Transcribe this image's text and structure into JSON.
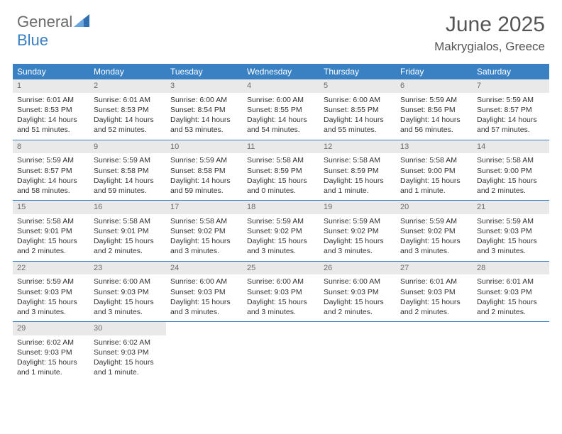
{
  "brand": {
    "text1": "General",
    "text2": "Blue"
  },
  "title": {
    "month_year": "June 2025",
    "location": "Makrygialos, Greece"
  },
  "colors": {
    "header_bar": "#3a81c4",
    "day_number_bg": "#e9e9e9",
    "text": "#333333",
    "muted": "#6b6b6b",
    "rule": "#3a81c4"
  },
  "weekdays": [
    "Sunday",
    "Monday",
    "Tuesday",
    "Wednesday",
    "Thursday",
    "Friday",
    "Saturday"
  ],
  "weeks": [
    [
      {
        "n": "1",
        "sunrise": "Sunrise: 6:01 AM",
        "sunset": "Sunset: 8:53 PM",
        "daylight": "Daylight: 14 hours and 51 minutes."
      },
      {
        "n": "2",
        "sunrise": "Sunrise: 6:01 AM",
        "sunset": "Sunset: 8:53 PM",
        "daylight": "Daylight: 14 hours and 52 minutes."
      },
      {
        "n": "3",
        "sunrise": "Sunrise: 6:00 AM",
        "sunset": "Sunset: 8:54 PM",
        "daylight": "Daylight: 14 hours and 53 minutes."
      },
      {
        "n": "4",
        "sunrise": "Sunrise: 6:00 AM",
        "sunset": "Sunset: 8:55 PM",
        "daylight": "Daylight: 14 hours and 54 minutes."
      },
      {
        "n": "5",
        "sunrise": "Sunrise: 6:00 AM",
        "sunset": "Sunset: 8:55 PM",
        "daylight": "Daylight: 14 hours and 55 minutes."
      },
      {
        "n": "6",
        "sunrise": "Sunrise: 5:59 AM",
        "sunset": "Sunset: 8:56 PM",
        "daylight": "Daylight: 14 hours and 56 minutes."
      },
      {
        "n": "7",
        "sunrise": "Sunrise: 5:59 AM",
        "sunset": "Sunset: 8:57 PM",
        "daylight": "Daylight: 14 hours and 57 minutes."
      }
    ],
    [
      {
        "n": "8",
        "sunrise": "Sunrise: 5:59 AM",
        "sunset": "Sunset: 8:57 PM",
        "daylight": "Daylight: 14 hours and 58 minutes."
      },
      {
        "n": "9",
        "sunrise": "Sunrise: 5:59 AM",
        "sunset": "Sunset: 8:58 PM",
        "daylight": "Daylight: 14 hours and 59 minutes."
      },
      {
        "n": "10",
        "sunrise": "Sunrise: 5:59 AM",
        "sunset": "Sunset: 8:58 PM",
        "daylight": "Daylight: 14 hours and 59 minutes."
      },
      {
        "n": "11",
        "sunrise": "Sunrise: 5:58 AM",
        "sunset": "Sunset: 8:59 PM",
        "daylight": "Daylight: 15 hours and 0 minutes."
      },
      {
        "n": "12",
        "sunrise": "Sunrise: 5:58 AM",
        "sunset": "Sunset: 8:59 PM",
        "daylight": "Daylight: 15 hours and 1 minute."
      },
      {
        "n": "13",
        "sunrise": "Sunrise: 5:58 AM",
        "sunset": "Sunset: 9:00 PM",
        "daylight": "Daylight: 15 hours and 1 minute."
      },
      {
        "n": "14",
        "sunrise": "Sunrise: 5:58 AM",
        "sunset": "Sunset: 9:00 PM",
        "daylight": "Daylight: 15 hours and 2 minutes."
      }
    ],
    [
      {
        "n": "15",
        "sunrise": "Sunrise: 5:58 AM",
        "sunset": "Sunset: 9:01 PM",
        "daylight": "Daylight: 15 hours and 2 minutes."
      },
      {
        "n": "16",
        "sunrise": "Sunrise: 5:58 AM",
        "sunset": "Sunset: 9:01 PM",
        "daylight": "Daylight: 15 hours and 2 minutes."
      },
      {
        "n": "17",
        "sunrise": "Sunrise: 5:58 AM",
        "sunset": "Sunset: 9:02 PM",
        "daylight": "Daylight: 15 hours and 3 minutes."
      },
      {
        "n": "18",
        "sunrise": "Sunrise: 5:59 AM",
        "sunset": "Sunset: 9:02 PM",
        "daylight": "Daylight: 15 hours and 3 minutes."
      },
      {
        "n": "19",
        "sunrise": "Sunrise: 5:59 AM",
        "sunset": "Sunset: 9:02 PM",
        "daylight": "Daylight: 15 hours and 3 minutes."
      },
      {
        "n": "20",
        "sunrise": "Sunrise: 5:59 AM",
        "sunset": "Sunset: 9:02 PM",
        "daylight": "Daylight: 15 hours and 3 minutes."
      },
      {
        "n": "21",
        "sunrise": "Sunrise: 5:59 AM",
        "sunset": "Sunset: 9:03 PM",
        "daylight": "Daylight: 15 hours and 3 minutes."
      }
    ],
    [
      {
        "n": "22",
        "sunrise": "Sunrise: 5:59 AM",
        "sunset": "Sunset: 9:03 PM",
        "daylight": "Daylight: 15 hours and 3 minutes."
      },
      {
        "n": "23",
        "sunrise": "Sunrise: 6:00 AM",
        "sunset": "Sunset: 9:03 PM",
        "daylight": "Daylight: 15 hours and 3 minutes."
      },
      {
        "n": "24",
        "sunrise": "Sunrise: 6:00 AM",
        "sunset": "Sunset: 9:03 PM",
        "daylight": "Daylight: 15 hours and 3 minutes."
      },
      {
        "n": "25",
        "sunrise": "Sunrise: 6:00 AM",
        "sunset": "Sunset: 9:03 PM",
        "daylight": "Daylight: 15 hours and 3 minutes."
      },
      {
        "n": "26",
        "sunrise": "Sunrise: 6:00 AM",
        "sunset": "Sunset: 9:03 PM",
        "daylight": "Daylight: 15 hours and 2 minutes."
      },
      {
        "n": "27",
        "sunrise": "Sunrise: 6:01 AM",
        "sunset": "Sunset: 9:03 PM",
        "daylight": "Daylight: 15 hours and 2 minutes."
      },
      {
        "n": "28",
        "sunrise": "Sunrise: 6:01 AM",
        "sunset": "Sunset: 9:03 PM",
        "daylight": "Daylight: 15 hours and 2 minutes."
      }
    ],
    [
      {
        "n": "29",
        "sunrise": "Sunrise: 6:02 AM",
        "sunset": "Sunset: 9:03 PM",
        "daylight": "Daylight: 15 hours and 1 minute."
      },
      {
        "n": "30",
        "sunrise": "Sunrise: 6:02 AM",
        "sunset": "Sunset: 9:03 PM",
        "daylight": "Daylight: 15 hours and 1 minute."
      },
      null,
      null,
      null,
      null,
      null
    ]
  ]
}
